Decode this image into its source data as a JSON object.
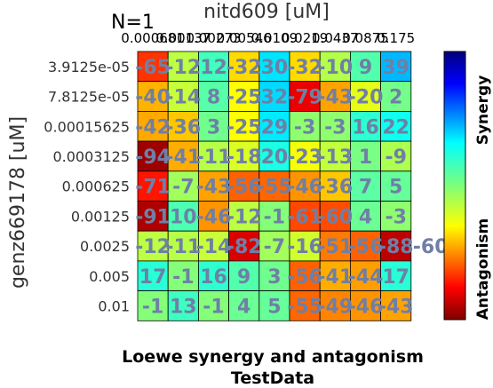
{
  "chart_data": {
    "type": "heatmap",
    "n_label": "N=1",
    "title": "Loewe synergy and antagonism",
    "subtitle": "TestData",
    "xlabel": "nitd609 [uM]",
    "ylabel": "genz669178 [uM]",
    "x_ticks": [
      "0.000681",
      "0.00137",
      "0.00273",
      "0.00546",
      "0.0109",
      "0.0219",
      "0.0437",
      "0.0875",
      "0.175"
    ],
    "y_ticks": [
      "3.9125e-05",
      "7.8125e-05",
      "0.00015625",
      "0.0003125",
      "0.000625",
      "0.00125",
      "0.0025",
      "0.005",
      "0.01"
    ],
    "values": [
      [
        -65,
        -12,
        12,
        -32,
        30,
        -32,
        -10,
        9,
        39
      ],
      [
        -40,
        -14,
        8,
        -25,
        32,
        -79,
        -43,
        -20,
        2
      ],
      [
        -42,
        -36,
        3,
        -25,
        29,
        -3,
        -3,
        16,
        22
      ],
      [
        -94,
        -41,
        -11,
        -18,
        20,
        -23,
        -13,
        1,
        -9
      ],
      [
        -71,
        -7,
        -43,
        -56,
        -55,
        -46,
        -36,
        7,
        5
      ],
      [
        -91,
        10,
        -46,
        -12,
        -1,
        -61,
        -60,
        4,
        -3
      ],
      [
        -12,
        -11,
        -14,
        -82,
        -7,
        -16,
        -51,
        -56,
        -88
      ],
      [
        17,
        -1,
        16,
        9,
        3,
        -56,
        -41,
        -44,
        17
      ],
      [
        -1,
        13,
        -1,
        4,
        5,
        -55,
        -49,
        -46,
        -43
      ]
    ],
    "row_overflow_labels": [
      "",
      "",
      "",
      "",
      "",
      "",
      "-60",
      "",
      ""
    ],
    "colorbar": {
      "range": [
        -100,
        100
      ],
      "top_label": "Synergy",
      "bottom_label": "Antagonism",
      "colormap": "jet"
    }
  },
  "colors": {
    "cell_text": "#6f7fa6",
    "grid": "#000000",
    "text": "#000000",
    "axis_text": "#333333"
  }
}
